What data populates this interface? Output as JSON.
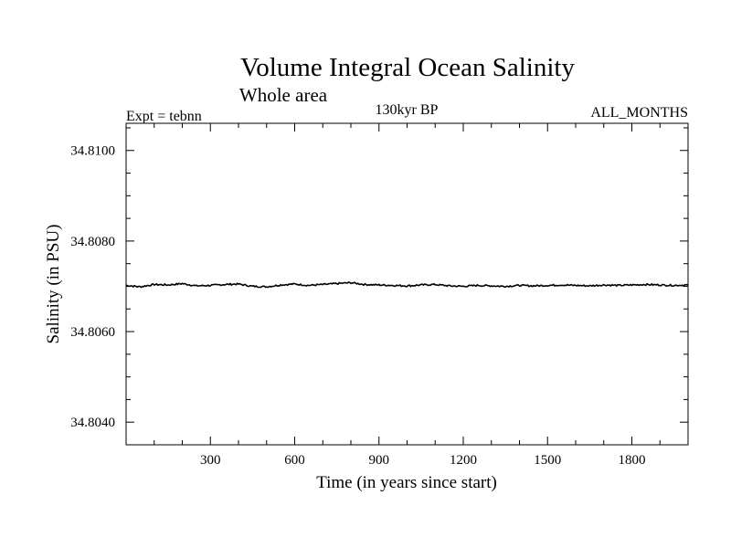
{
  "chart_data": {
    "type": "line",
    "title": "Volume Integral Ocean Salinity",
    "subtitle": "Whole area",
    "label_left": "Expt = tebnn",
    "label_center": "130kyr BP",
    "label_right": "ALL_MONTHS",
    "xlabel": "Time (in years since start)",
    "ylabel": "Salinity (in PSU)",
    "xlim": [
      0,
      2000
    ],
    "ylim": [
      34.8035,
      34.8106
    ],
    "x_ticks": [
      300,
      600,
      900,
      1200,
      1500,
      1800
    ],
    "x_tick_labels": [
      "300",
      "600",
      "900",
      "1200",
      "1500",
      "1800"
    ],
    "y_ticks": [
      34.804,
      34.806,
      34.808,
      34.81
    ],
    "y_tick_labels": [
      "34.8040",
      "34.8060",
      "34.8080",
      "34.8100"
    ],
    "series": [
      {
        "name": "salinity",
        "x": [
          0,
          50,
          100,
          150,
          200,
          250,
          300,
          350,
          400,
          450,
          500,
          550,
          600,
          650,
          700,
          750,
          800,
          850,
          900,
          950,
          1000,
          1050,
          1100,
          1150,
          1200,
          1250,
          1300,
          1350,
          1400,
          1450,
          1500,
          1550,
          1600,
          1650,
          1700,
          1750,
          1800,
          1850,
          1900,
          1950,
          2000
        ],
        "values": [
          34.80702,
          34.80699,
          34.80704,
          34.80703,
          34.80706,
          34.80701,
          34.80702,
          34.80704,
          34.80705,
          34.807,
          34.80699,
          34.80703,
          34.80705,
          34.80702,
          34.80704,
          34.80706,
          34.80708,
          34.80704,
          34.80703,
          34.80702,
          34.80701,
          34.80703,
          34.80704,
          34.80701,
          34.807,
          34.80702,
          34.80701,
          34.807,
          34.80702,
          34.80701,
          34.80702,
          34.80703,
          34.80702,
          34.80701,
          34.80703,
          34.80702,
          34.80703,
          34.80704,
          34.80703,
          34.80702,
          34.80703
        ]
      }
    ]
  }
}
